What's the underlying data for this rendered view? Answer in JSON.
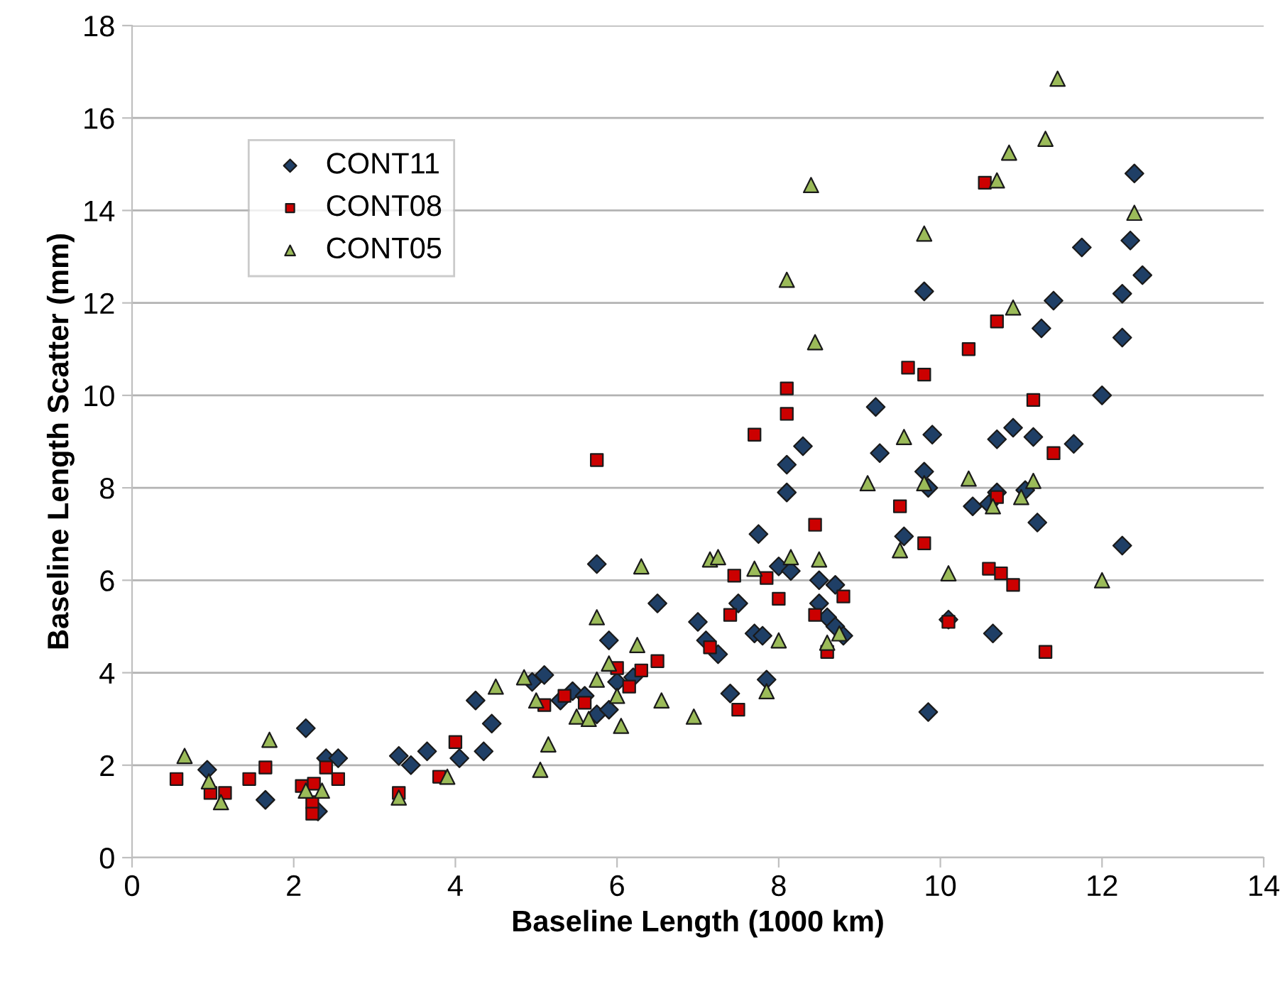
{
  "chart_data": {
    "type": "scatter",
    "xlabel": "Baseline Length (1000 km)",
    "ylabel": "Baseline Length Scatter (mm)",
    "xlim": [
      0,
      14
    ],
    "xticks": [
      0,
      2,
      4,
      6,
      8,
      10,
      12,
      14
    ],
    "ylim": [
      0,
      18
    ],
    "yticks": [
      0,
      2,
      4,
      6,
      8,
      10,
      12,
      14,
      16,
      18
    ],
    "grid": "y",
    "legend": "top left",
    "series": [
      {
        "name": "CONT11",
        "color": "#1f3f66",
        "marker": "diamond",
        "x": [
          0.93,
          1.65,
          2.15,
          2.3,
          2.4,
          2.55,
          3.3,
          3.45,
          3.65,
          4.05,
          4.25,
          4.35,
          4.45,
          4.95,
          5.1,
          5.3,
          5.45,
          5.6,
          5.75,
          5.75,
          5.9,
          5.9,
          6.0,
          6.2,
          6.5,
          7.0,
          7.1,
          7.25,
          7.4,
          7.5,
          7.7,
          7.75,
          7.8,
          7.85,
          8.0,
          8.1,
          8.1,
          8.15,
          8.3,
          8.5,
          8.5,
          8.6,
          8.7,
          8.7,
          8.8,
          9.2,
          9.25,
          9.55,
          9.8,
          9.8,
          9.85,
          9.85,
          9.9,
          10.1,
          10.4,
          10.6,
          10.65,
          10.7,
          10.7,
          10.9,
          11.05,
          11.15,
          11.2,
          11.25,
          11.4,
          11.65,
          11.75,
          12.0,
          12.25,
          12.25,
          12.25,
          12.35,
          12.4,
          12.5
        ],
        "values": [
          1.9,
          1.25,
          2.8,
          1.0,
          2.15,
          2.15,
          2.2,
          2.0,
          2.3,
          2.15,
          3.4,
          2.3,
          2.9,
          3.8,
          3.95,
          3.4,
          3.6,
          3.5,
          3.1,
          6.35,
          3.2,
          4.7,
          3.8,
          3.9,
          5.5,
          5.1,
          4.7,
          4.4,
          3.55,
          5.5,
          4.85,
          7.0,
          4.8,
          3.85,
          6.3,
          8.5,
          7.9,
          6.2,
          8.9,
          6.0,
          5.5,
          5.2,
          5.9,
          5.0,
          4.8,
          9.75,
          8.75,
          6.95,
          8.35,
          12.25,
          8.0,
          3.15,
          9.15,
          5.15,
          7.6,
          7.65,
          4.85,
          9.05,
          7.9,
          9.3,
          7.95,
          9.1,
          7.25,
          11.45,
          12.05,
          8.95,
          13.2,
          10.0,
          12.2,
          11.25,
          6.75,
          13.35,
          14.8,
          12.6
        ]
      },
      {
        "name": "CONT08",
        "color": "#cc0000",
        "marker": "square",
        "x": [
          0.55,
          0.97,
          1.15,
          1.45,
          1.65,
          2.1,
          2.23,
          2.23,
          2.25,
          2.4,
          2.55,
          3.3,
          3.8,
          4.0,
          5.1,
          5.35,
          5.6,
          5.75,
          6.0,
          6.15,
          6.3,
          6.5,
          7.15,
          7.4,
          7.45,
          7.5,
          7.7,
          7.85,
          8.0,
          8.1,
          8.1,
          8.45,
          8.45,
          8.6,
          8.8,
          9.5,
          9.6,
          9.8,
          9.8,
          10.1,
          10.35,
          10.55,
          10.6,
          10.7,
          10.7,
          10.75,
          10.9,
          11.15,
          11.3,
          11.4
        ],
        "values": [
          1.7,
          1.4,
          1.4,
          1.7,
          1.95,
          1.55,
          1.2,
          0.95,
          1.6,
          1.95,
          1.7,
          1.4,
          1.75,
          2.5,
          3.3,
          3.5,
          3.35,
          8.6,
          4.1,
          3.7,
          4.05,
          4.25,
          4.55,
          5.25,
          6.1,
          3.2,
          9.15,
          6.05,
          5.6,
          10.15,
          9.6,
          7.2,
          5.25,
          4.45,
          5.65,
          7.6,
          10.6,
          10.45,
          6.8,
          5.1,
          11.0,
          14.6,
          6.25,
          11.6,
          7.8,
          6.15,
          5.9,
          9.9,
          4.45,
          8.75
        ]
      },
      {
        "name": "CONT05",
        "color": "#9bbb59",
        "marker": "triangle",
        "x": [
          0.65,
          0.95,
          1.1,
          1.7,
          2.15,
          2.35,
          3.3,
          3.9,
          4.5,
          4.85,
          5.0,
          5.05,
          5.15,
          5.5,
          5.65,
          5.75,
          5.75,
          5.9,
          6.0,
          6.05,
          6.25,
          6.3,
          6.55,
          6.95,
          7.15,
          7.25,
          7.7,
          7.85,
          8.0,
          8.15,
          8.1,
          8.4,
          8.45,
          8.5,
          8.6,
          8.75,
          9.1,
          9.5,
          9.55,
          9.8,
          9.8,
          10.1,
          10.35,
          10.65,
          10.7,
          10.85,
          10.9,
          11.0,
          11.15,
          11.3,
          11.45,
          12.0,
          12.4
        ],
        "values": [
          2.2,
          1.65,
          1.2,
          2.55,
          1.45,
          1.45,
          1.3,
          1.75,
          3.7,
          3.9,
          3.4,
          1.9,
          2.45,
          3.05,
          3.0,
          3.85,
          5.2,
          4.2,
          3.5,
          2.85,
          4.6,
          6.3,
          3.4,
          3.05,
          6.45,
          6.5,
          6.25,
          3.6,
          4.7,
          6.5,
          12.5,
          14.55,
          11.15,
          6.45,
          4.65,
          4.85,
          8.1,
          6.65,
          9.1,
          13.5,
          8.1,
          6.15,
          8.2,
          7.6,
          14.65,
          15.25,
          11.9,
          7.8,
          8.15,
          15.55,
          16.85,
          6.0,
          13.95
        ]
      }
    ]
  }
}
